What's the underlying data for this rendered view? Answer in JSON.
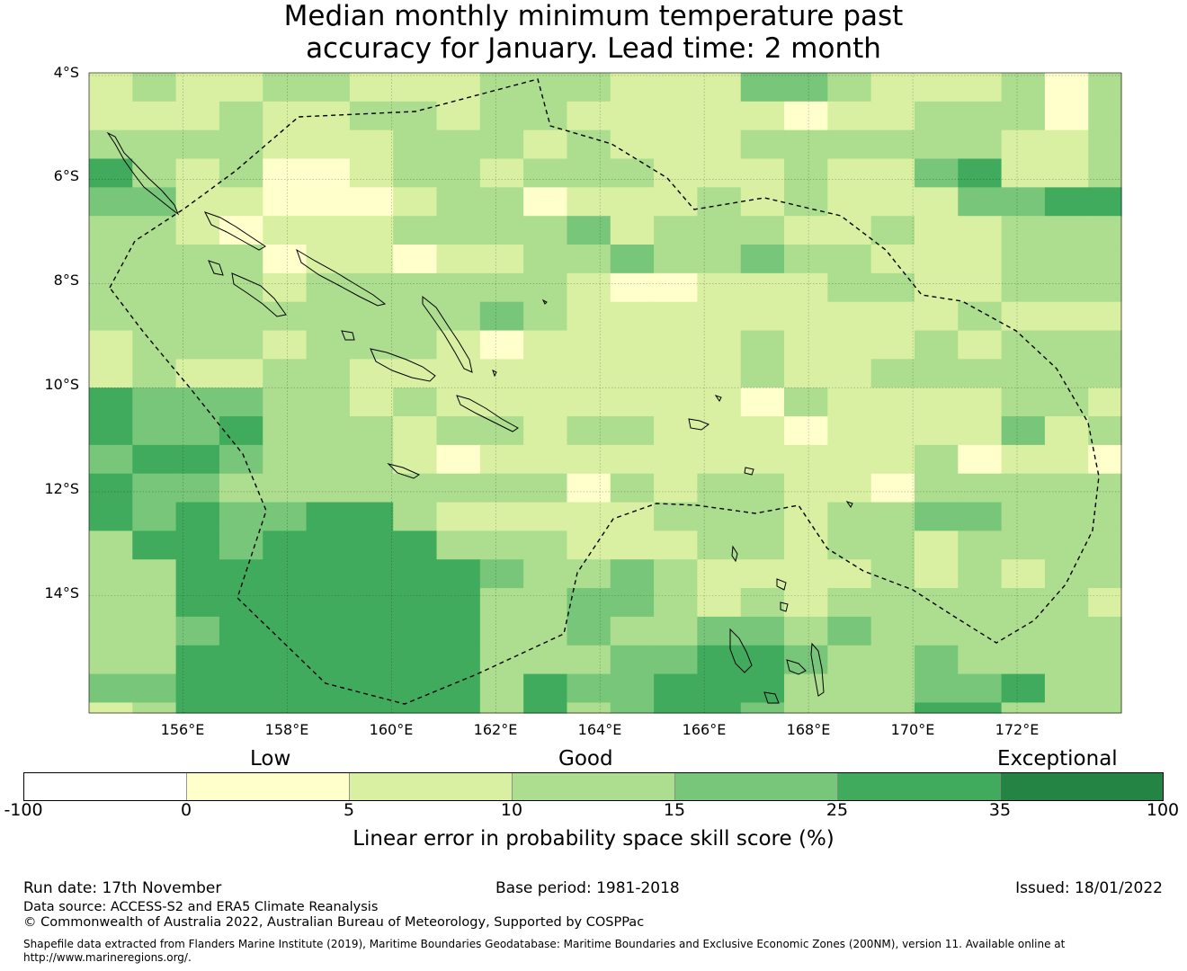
{
  "title": {
    "line1": "Median monthly minimum temperature past",
    "line2": "accuracy for January. Lead time: 2 month"
  },
  "map": {
    "lat_labels": [
      "4°S",
      "6°S",
      "8°S",
      "10°S",
      "12°S",
      "14°S"
    ],
    "lon_labels": [
      "156°E",
      "158°E",
      "160°E",
      "162°E",
      "164°E",
      "166°E",
      "168°E",
      "170°E",
      "172°E"
    ],
    "lon_range": [
      154.2,
      174.0
    ],
    "lat_range": [
      -16.25,
      -3.95
    ],
    "grid_origin": {
      "lon": 154.2,
      "lat": -3.95
    },
    "cell_size_deg": {
      "lon": 0.8333,
      "lat": 0.55
    },
    "skill_grid": [
      "23223322233322244322231323",
      "22232233233222221223331312",
      "33332223332322233333322334",
      "53231123323332223224522345",
      "44221112331222323222445535",
      "33212223333423332232233334",
      "3333122122334334332223334",
      "3333233333321122233223333",
      "3333333334322222222232222",
      "2333233321222223222323333",
      "2322332222222223223333333",
      "5444332322222221322223323",
      "5445333233233222122224233",
      "4554333212222222222312213",
      "5443333333313233221333333",
      "5454455322222333233443333",
      "3554555533322233233233333",
      "3355555554334322223232333",
      "3355555553344323233333322",
      "3345555553343344343333333",
      "3355555553334455433433333",
      "4455555553544555333445334",
      "2355555553534554333553332"
    ],
    "color_scale": [
      "#ffffff",
      "#ffffcc",
      "#d9f0a3",
      "#addd8e",
      "#78c679",
      "#41ab5d",
      "#238443"
    ]
  },
  "legend": {
    "categories": [
      "Low",
      "Good",
      "Exceptional"
    ],
    "ticks": [
      "-100",
      "0",
      "5",
      "10",
      "15",
      "25",
      "35",
      "100"
    ],
    "colors": [
      "#ffffff",
      "#ffffcc",
      "#d9f0a3",
      "#addd8e",
      "#78c679",
      "#41ab5d",
      "#238443"
    ],
    "title": "Linear error in probability space skill score (%)"
  },
  "footer": {
    "run_date": "Run date: 17th November",
    "base_period": "Base period: 1981-2018",
    "issued": "Issued: 18/01/2022",
    "data_source": "Data source: ACCESS-S2 and ERA5 Climate Reanalysis",
    "copyright": "© Commonwealth of Australia 2022, Australian Bureau of Meteorology, Supported by COSPPac",
    "shapefile": "Shapefile data extracted from Flanders Marine Institute (2019), Maritime Boundaries Geodatabase: Maritime Boundaries and Exclusive Economic Zones (200NM), version 11. Available online at",
    "url": "http://www.marineregions.org/."
  }
}
